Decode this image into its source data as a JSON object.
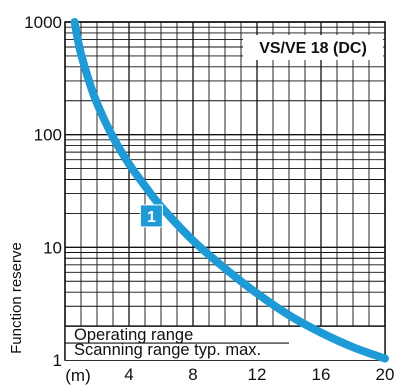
{
  "chart_data": {
    "type": "line",
    "title": "VS/VE 18 (DC)",
    "xlabel": "(m)",
    "ylabel": "Function reserve",
    "x_axis": {
      "range": [
        0,
        20
      ],
      "ticks": [
        4,
        8,
        12,
        16,
        20
      ],
      "tick_labels": [
        "4",
        "8",
        "12",
        "16",
        "20"
      ],
      "unit_label": "(m)"
    },
    "y_axis": {
      "scale": "log",
      "range": [
        1,
        1000
      ],
      "ticks": [
        1,
        10,
        100,
        1000
      ],
      "tick_labels": [
        "1",
        "10",
        "100",
        "1000"
      ]
    },
    "grid": true,
    "series": [
      {
        "marker_label": "1",
        "color": "#1e9ad6",
        "points": [
          [
            0.6,
            1000
          ],
          [
            0.8,
            700
          ],
          [
            1.0,
            520
          ],
          [
            1.5,
            300
          ],
          [
            2.0,
            190
          ],
          [
            3.0,
            95
          ],
          [
            4.0,
            55
          ],
          [
            5.0,
            35
          ],
          [
            6.0,
            23
          ],
          [
            8.0,
            11.5
          ],
          [
            10.0,
            6.5
          ],
          [
            12.0,
            3.9
          ],
          [
            14.0,
            2.5
          ],
          [
            16.0,
            1.75
          ],
          [
            18.0,
            1.3
          ],
          [
            20.0,
            1.03
          ]
        ]
      }
    ],
    "bands": [
      {
        "label": "Operating range",
        "y_top": 2,
        "x_end": 14
      },
      {
        "label": "Scanning range typ. max.",
        "y_top": 1,
        "x_end": 20
      }
    ]
  }
}
